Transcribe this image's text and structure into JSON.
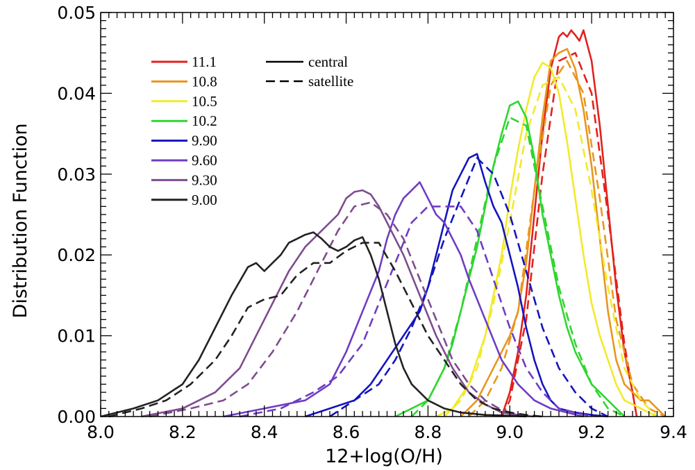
{
  "chart_data": {
    "type": "line",
    "xlabel": "12+log(O/H)",
    "ylabel": "Distribution Function",
    "xlim": [
      8.0,
      9.4
    ],
    "ylim": [
      0.0,
      0.05
    ],
    "x_ticks": [
      "8.0",
      "8.2",
      "8.4",
      "8.6",
      "8.8",
      "9.0",
      "9.2",
      "9.4"
    ],
    "y_ticks": [
      "0.00",
      "0.01",
      "0.02",
      "0.03",
      "0.04",
      "0.05"
    ],
    "grid": false,
    "legend_mass": {
      "placement": "top-left",
      "entries": [
        {
          "label": "11.1",
          "color": "#e3211c"
        },
        {
          "label": "10.8",
          "color": "#e8961e"
        },
        {
          "label": "10.5",
          "color": "#f2ea2a"
        },
        {
          "label": "10.2",
          "color": "#2fd62f"
        },
        {
          "label": "9.90",
          "color": "#1414bf"
        },
        {
          "label": "9.60",
          "color": "#6f3cc3"
        },
        {
          "label": "9.30",
          "color": "#7e4c8e"
        },
        {
          "label": "9.00",
          "color": "#222222"
        }
      ]
    },
    "legend_type": {
      "placement": "top-center",
      "entries": [
        {
          "label": "central",
          "style": "solid"
        },
        {
          "label": "satellite",
          "style": "dashed"
        }
      ]
    },
    "series": [
      {
        "name": "11.1",
        "style": "solid",
        "color": "#e3211c",
        "x": [
          8.98,
          9.0,
          9.02,
          9.04,
          9.06,
          9.08,
          9.1,
          9.12,
          9.13,
          9.14,
          9.15,
          9.16,
          9.17,
          9.18,
          9.2,
          9.22,
          9.24,
          9.26,
          9.28,
          9.3,
          9.31
        ],
        "y": [
          0.0,
          0.003,
          0.008,
          0.015,
          0.025,
          0.035,
          0.043,
          0.047,
          0.0475,
          0.047,
          0.0478,
          0.0472,
          0.0465,
          0.0478,
          0.044,
          0.036,
          0.026,
          0.016,
          0.008,
          0.003,
          0.0
        ]
      },
      {
        "name": "11.1",
        "style": "dashed",
        "color": "#e3211c",
        "x": [
          8.98,
          9.0,
          9.04,
          9.08,
          9.12,
          9.16,
          9.2,
          9.24,
          9.28,
          9.31
        ],
        "y": [
          0.0,
          0.002,
          0.012,
          0.03,
          0.044,
          0.045,
          0.04,
          0.025,
          0.009,
          0.0
        ]
      },
      {
        "name": "10.8",
        "style": "solid",
        "color": "#e8961e",
        "x": [
          8.88,
          8.9,
          8.92,
          8.94,
          8.96,
          8.98,
          9.0,
          9.02,
          9.04,
          9.06,
          9.08,
          9.1,
          9.12,
          9.14,
          9.16,
          9.18,
          9.2,
          9.22,
          9.24,
          9.26,
          9.28,
          9.3,
          9.32,
          9.34,
          9.36,
          9.38
        ],
        "y": [
          0.0,
          0.001,
          0.002,
          0.004,
          0.006,
          0.008,
          0.01,
          0.013,
          0.019,
          0.028,
          0.037,
          0.044,
          0.045,
          0.0455,
          0.043,
          0.038,
          0.031,
          0.022,
          0.013,
          0.007,
          0.004,
          0.003,
          0.002,
          0.002,
          0.001,
          0.0
        ]
      },
      {
        "name": "10.8",
        "style": "dashed",
        "color": "#e8961e",
        "x": [
          8.9,
          8.94,
          8.98,
          9.02,
          9.06,
          9.1,
          9.14,
          9.18,
          9.22,
          9.26,
          9.3,
          9.34,
          9.38
        ],
        "y": [
          0.0,
          0.002,
          0.006,
          0.013,
          0.028,
          0.041,
          0.044,
          0.04,
          0.027,
          0.012,
          0.004,
          0.001,
          0.0
        ]
      },
      {
        "name": "10.5",
        "style": "solid",
        "color": "#f2ea2a",
        "x": [
          8.82,
          8.86,
          8.9,
          8.94,
          8.96,
          8.98,
          9.0,
          9.02,
          9.04,
          9.06,
          9.08,
          9.1,
          9.12,
          9.14,
          9.16,
          9.18,
          9.2,
          9.22,
          9.24,
          9.26,
          9.28,
          9.3,
          9.32,
          9.34,
          9.36
        ],
        "y": [
          0.0,
          0.001,
          0.004,
          0.01,
          0.015,
          0.02,
          0.027,
          0.033,
          0.038,
          0.042,
          0.0438,
          0.0432,
          0.04,
          0.034,
          0.027,
          0.02,
          0.014,
          0.01,
          0.007,
          0.004,
          0.002,
          0.0015,
          0.001,
          0.0005,
          0.0
        ]
      },
      {
        "name": "10.5",
        "style": "dashed",
        "color": "#f2ea2a",
        "x": [
          8.84,
          8.88,
          8.92,
          8.96,
          9.0,
          9.04,
          9.08,
          9.12,
          9.16,
          9.2,
          9.24,
          9.28,
          9.32,
          9.36
        ],
        "y": [
          0.0,
          0.002,
          0.006,
          0.014,
          0.024,
          0.035,
          0.041,
          0.042,
          0.038,
          0.028,
          0.016,
          0.006,
          0.002,
          0.0
        ]
      },
      {
        "name": "10.2",
        "style": "solid",
        "color": "#2fd62f",
        "x": [
          8.72,
          8.76,
          8.8,
          8.84,
          8.86,
          8.88,
          8.9,
          8.92,
          8.94,
          8.96,
          8.98,
          9.0,
          9.02,
          9.04,
          9.06,
          9.08,
          9.1,
          9.12,
          9.14,
          9.16,
          9.18,
          9.2,
          9.22,
          9.24,
          9.26,
          9.28
        ],
        "y": [
          0.0,
          0.001,
          0.002,
          0.006,
          0.009,
          0.013,
          0.017,
          0.021,
          0.026,
          0.031,
          0.035,
          0.0385,
          0.039,
          0.037,
          0.032,
          0.025,
          0.02,
          0.015,
          0.011,
          0.008,
          0.006,
          0.004,
          0.003,
          0.002,
          0.001,
          0.0
        ]
      },
      {
        "name": "10.2",
        "style": "dashed",
        "color": "#2fd62f",
        "x": [
          8.76,
          8.8,
          8.84,
          8.88,
          8.92,
          8.96,
          9.0,
          9.04,
          9.08,
          9.12,
          9.16,
          9.2,
          9.24,
          9.28
        ],
        "y": [
          0.0,
          0.002,
          0.006,
          0.013,
          0.022,
          0.031,
          0.037,
          0.036,
          0.026,
          0.016,
          0.009,
          0.004,
          0.001,
          0.0
        ]
      },
      {
        "name": "9.90",
        "style": "solid",
        "color": "#1414bf",
        "x": [
          8.5,
          8.56,
          8.62,
          8.66,
          8.7,
          8.74,
          8.78,
          8.8,
          8.82,
          8.84,
          8.86,
          8.88,
          8.9,
          8.92,
          8.94,
          8.96,
          8.98,
          9.0,
          9.02,
          9.04,
          9.06,
          9.08,
          9.1,
          9.12,
          9.16,
          9.2,
          9.24
        ],
        "y": [
          0.0,
          0.001,
          0.002,
          0.004,
          0.007,
          0.01,
          0.013,
          0.016,
          0.02,
          0.024,
          0.028,
          0.03,
          0.032,
          0.0325,
          0.029,
          0.026,
          0.024,
          0.02,
          0.016,
          0.011,
          0.007,
          0.004,
          0.002,
          0.001,
          0.0005,
          0.0002,
          0.0
        ]
      },
      {
        "name": "9.90",
        "style": "dashed",
        "color": "#1414bf",
        "x": [
          8.56,
          8.62,
          8.68,
          8.72,
          8.76,
          8.8,
          8.84,
          8.88,
          8.92,
          8.96,
          9.0,
          9.04,
          9.08,
          9.12,
          9.16,
          9.2,
          9.24
        ],
        "y": [
          0.0,
          0.002,
          0.004,
          0.007,
          0.011,
          0.016,
          0.022,
          0.027,
          0.032,
          0.03,
          0.025,
          0.018,
          0.011,
          0.006,
          0.003,
          0.001,
          0.0
        ]
      },
      {
        "name": "9.60",
        "style": "solid",
        "color": "#6f3cc3",
        "x": [
          8.3,
          8.4,
          8.5,
          8.56,
          8.6,
          8.64,
          8.68,
          8.7,
          8.72,
          8.74,
          8.76,
          8.78,
          8.8,
          8.82,
          8.84,
          8.86,
          8.88,
          8.9,
          8.94,
          8.98,
          9.02,
          9.06,
          9.1,
          9.14,
          9.18
        ],
        "y": [
          0.0,
          0.001,
          0.002,
          0.004,
          0.008,
          0.013,
          0.018,
          0.022,
          0.025,
          0.027,
          0.028,
          0.029,
          0.027,
          0.025,
          0.024,
          0.022,
          0.02,
          0.017,
          0.012,
          0.007,
          0.004,
          0.002,
          0.001,
          0.0005,
          0.0
        ]
      },
      {
        "name": "9.60",
        "style": "dashed",
        "color": "#6f3cc3",
        "x": [
          8.34,
          8.44,
          8.52,
          8.58,
          8.64,
          8.68,
          8.72,
          8.76,
          8.8,
          8.84,
          8.88,
          8.92,
          8.96,
          9.0,
          9.04,
          9.08,
          9.12,
          9.16,
          9.2
        ],
        "y": [
          0.0,
          0.001,
          0.003,
          0.005,
          0.009,
          0.014,
          0.019,
          0.024,
          0.026,
          0.026,
          0.026,
          0.023,
          0.017,
          0.011,
          0.006,
          0.003,
          0.001,
          0.0005,
          0.0
        ]
      },
      {
        "name": "9.30",
        "style": "solid",
        "color": "#7e4c8e",
        "x": [
          8.1,
          8.2,
          8.28,
          8.34,
          8.38,
          8.42,
          8.46,
          8.5,
          8.54,
          8.58,
          8.6,
          8.62,
          8.64,
          8.66,
          8.68,
          8.7,
          8.74,
          8.78,
          8.82,
          8.86,
          8.9,
          8.94,
          8.98,
          9.02,
          9.06
        ],
        "y": [
          0.0,
          0.001,
          0.003,
          0.006,
          0.01,
          0.014,
          0.018,
          0.021,
          0.023,
          0.025,
          0.027,
          0.0278,
          0.028,
          0.0275,
          0.026,
          0.024,
          0.02,
          0.015,
          0.01,
          0.006,
          0.003,
          0.0015,
          0.0005,
          0.0002,
          0.0
        ]
      },
      {
        "name": "9.30",
        "style": "dashed",
        "color": "#7e4c8e",
        "x": [
          8.12,
          8.22,
          8.3,
          8.36,
          8.42,
          8.48,
          8.54,
          8.58,
          8.62,
          8.66,
          8.7,
          8.74,
          8.78,
          8.82,
          8.86,
          8.9,
          8.94,
          8.98,
          9.04
        ],
        "y": [
          0.0,
          0.001,
          0.002,
          0.004,
          0.008,
          0.013,
          0.019,
          0.023,
          0.026,
          0.0265,
          0.025,
          0.022,
          0.017,
          0.012,
          0.007,
          0.004,
          0.002,
          0.0008,
          0.0
        ]
      },
      {
        "name": "9.00",
        "style": "solid",
        "color": "#222222",
        "x": [
          8.0,
          8.08,
          8.14,
          8.2,
          8.24,
          8.28,
          8.32,
          8.36,
          8.38,
          8.4,
          8.42,
          8.44,
          8.46,
          8.48,
          8.5,
          8.52,
          8.54,
          8.56,
          8.58,
          8.6,
          8.62,
          8.64,
          8.66,
          8.68,
          8.7,
          8.72,
          8.74,
          8.76,
          8.8,
          8.84,
          8.88,
          8.94,
          9.0,
          9.04
        ],
        "y": [
          0.0,
          0.001,
          0.002,
          0.004,
          0.007,
          0.011,
          0.015,
          0.0185,
          0.019,
          0.018,
          0.019,
          0.02,
          0.0215,
          0.022,
          0.0225,
          0.0228,
          0.022,
          0.021,
          0.0205,
          0.021,
          0.0218,
          0.0222,
          0.02,
          0.017,
          0.013,
          0.009,
          0.006,
          0.004,
          0.002,
          0.001,
          0.0005,
          0.0002,
          0.0001,
          0.0
        ]
      },
      {
        "name": "9.00",
        "style": "dashed",
        "color": "#222222",
        "x": [
          8.02,
          8.1,
          8.16,
          8.22,
          8.28,
          8.32,
          8.36,
          8.4,
          8.44,
          8.48,
          8.52,
          8.56,
          8.6,
          8.64,
          8.68,
          8.72,
          8.76,
          8.8,
          8.84,
          8.88,
          8.92,
          8.96,
          9.0,
          9.04,
          9.08
        ],
        "y": [
          0.0,
          0.001,
          0.002,
          0.004,
          0.007,
          0.01,
          0.0135,
          0.0145,
          0.015,
          0.0175,
          0.019,
          0.019,
          0.0205,
          0.0215,
          0.0215,
          0.018,
          0.014,
          0.01,
          0.007,
          0.004,
          0.002,
          0.001,
          0.0005,
          0.0002,
          0.0
        ]
      }
    ]
  }
}
